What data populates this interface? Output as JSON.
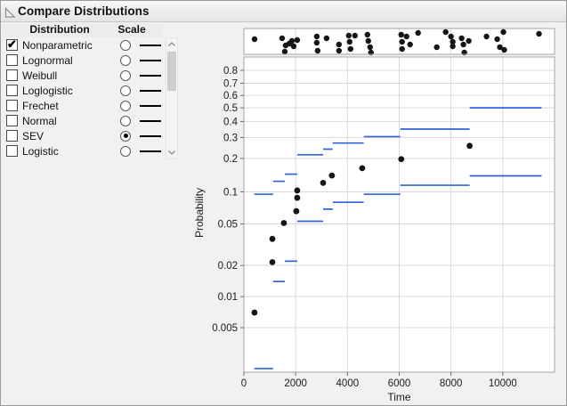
{
  "window": {
    "title": "Compare Distributions"
  },
  "icons": {
    "disclosure": "open-outline-triangle",
    "scroll_up": "chevron-up",
    "scroll_down": "chevron-down",
    "checked_glyph": "✔"
  },
  "panel": {
    "columns": [
      "Distribution",
      "Scale"
    ],
    "rows": [
      {
        "label": "Nonparametric",
        "checked": true,
        "scale_selected": false
      },
      {
        "label": "Lognormal",
        "checked": false,
        "scale_selected": false
      },
      {
        "label": "Weibull",
        "checked": false,
        "scale_selected": false
      },
      {
        "label": "Loglogistic",
        "checked": false,
        "scale_selected": false
      },
      {
        "label": "Frechet",
        "checked": false,
        "scale_selected": false
      },
      {
        "label": "Normal",
        "checked": false,
        "scale_selected": false
      },
      {
        "label": "SEV",
        "checked": false,
        "scale_selected": true
      },
      {
        "label": "Logistic",
        "checked": false,
        "scale_selected": false
      }
    ]
  },
  "colors": {
    "accent_blue": "#2f63d7",
    "dot_black": "#161616",
    "grid": "#d9d9d9",
    "frame": "#a6a6a6",
    "text": "#1a1a1a"
  },
  "chart_data": {
    "type": "scatter",
    "subtype": "nonparametric-cdf-steps-with-pointwise-ci-and-event-strip",
    "title": "",
    "xlabel": "Time",
    "ylabel": "Probability",
    "xlim": [
      0,
      12000
    ],
    "x_ticks": [
      0,
      2000,
      4000,
      6000,
      8000,
      10000
    ],
    "x_tick_labels": [
      "0",
      "2000",
      "4000",
      "6000",
      "8000",
      "10000"
    ],
    "y_scale": "SEV probability (complementary log-log)",
    "ylim": [
      0.0018,
      0.89
    ],
    "y_ticks": [
      0.8,
      0.7,
      0.6,
      0.5,
      0.4,
      0.3,
      0.2,
      0.1,
      0.05,
      0.02,
      0.01,
      0.005
    ],
    "y_tick_labels": [
      "0.8",
      "0.7",
      "0.6",
      "0.5",
      "0.4",
      "0.3",
      "0.2",
      "0.1",
      "0.05",
      "0.02",
      "0.01",
      "0.005"
    ],
    "grid": true,
    "legend": "none",
    "estimate_points": [
      [
        410,
        0.007
      ],
      [
        1100,
        0.0215
      ],
      [
        1100,
        0.036
      ],
      [
        1545,
        0.051
      ],
      [
        2025,
        0.066
      ],
      [
        2060,
        0.088
      ],
      [
        2060,
        0.103
      ],
      [
        3060,
        0.121
      ],
      [
        3400,
        0.141
      ],
      [
        4570,
        0.164
      ],
      [
        6080,
        0.197
      ],
      [
        8720,
        0.256
      ]
    ],
    "ci_steps": [
      [
        400,
        1130,
        0.002,
        0.095
      ],
      [
        1130,
        1580,
        0.014,
        0.125
      ],
      [
        1580,
        2060,
        0.022,
        0.145
      ],
      [
        2060,
        3060,
        0.053,
        0.215
      ],
      [
        3060,
        3430,
        0.069,
        0.24
      ],
      [
        3430,
        4630,
        0.08,
        0.27
      ],
      [
        4630,
        6040,
        0.095,
        0.305
      ],
      [
        6040,
        8720,
        0.115,
        0.35
      ],
      [
        8720,
        11500,
        0.14,
        0.5
      ]
    ],
    "event_strip_points": [
      [
        412,
        12
      ],
      [
        1476,
        11
      ],
      [
        1579,
        26
      ],
      [
        1613,
        19
      ],
      [
        1751,
        17
      ],
      [
        1854,
        14
      ],
      [
        1922,
        20
      ],
      [
        2060,
        13
      ],
      [
        2815,
        9
      ],
      [
        2815,
        16
      ],
      [
        2849,
        25
      ],
      [
        3193,
        11
      ],
      [
        3673,
        18
      ],
      [
        3673,
        25
      ],
      [
        4051,
        8
      ],
      [
        4085,
        15
      ],
      [
        4120,
        23
      ],
      [
        4291,
        8
      ],
      [
        4772,
        7
      ],
      [
        4806,
        14
      ],
      [
        4875,
        21
      ],
      [
        4909,
        27
      ],
      [
        6077,
        7
      ],
      [
        6111,
        15
      ],
      [
        6111,
        23
      ],
      [
        6283,
        9
      ],
      [
        6420,
        18
      ],
      [
        6729,
        5
      ],
      [
        7450,
        21
      ],
      [
        7794,
        4
      ],
      [
        8000,
        9
      ],
      [
        8068,
        15
      ],
      [
        8068,
        20
      ],
      [
        8412,
        11
      ],
      [
        8480,
        18
      ],
      [
        8515,
        27
      ],
      [
        8687,
        14
      ],
      [
        9373,
        9
      ],
      [
        9785,
        12
      ],
      [
        9888,
        21
      ],
      [
        10025,
        4
      ],
      [
        10059,
        24
      ],
      [
        11399,
        6
      ]
    ]
  }
}
